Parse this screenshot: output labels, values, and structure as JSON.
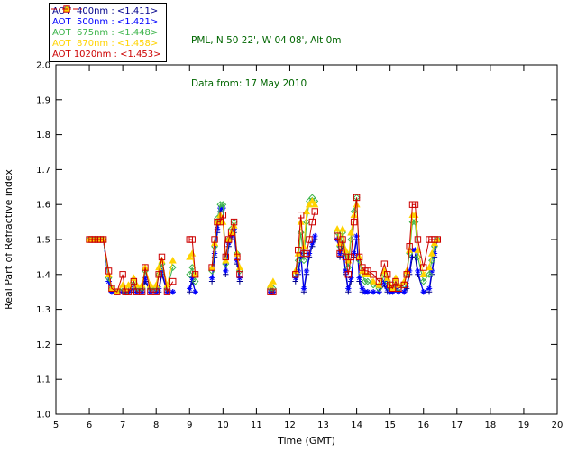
{
  "header": {
    "site_line": "PML, N 50 22', W 04 08', Alt 0m",
    "date_line": "Data from: 17 May 2010",
    "text_color": "#006600"
  },
  "chart_data": {
    "type": "line",
    "title": "",
    "xlabel": "Time (GMT)",
    "ylabel": "Real Part of Refractive index",
    "xlim": [
      5,
      20
    ],
    "ylim": [
      1.0,
      2.0
    ],
    "grid": false,
    "legend_position": "top-left",
    "axis_color": "#000000",
    "gap_threshold": 0.45,
    "xticks": [
      5,
      6,
      7,
      8,
      9,
      10,
      11,
      12,
      13,
      14,
      15,
      16,
      17,
      18,
      19,
      20
    ],
    "xtick_labels": [
      "5",
      "6",
      "7",
      "8",
      "9",
      "10",
      "11",
      "12",
      "13",
      "14",
      "15",
      "16",
      "17",
      "18",
      "19",
      "20"
    ],
    "yticks": [
      1.0,
      1.1,
      1.2,
      1.3,
      1.4,
      1.5,
      1.6,
      1.7,
      1.8,
      1.9,
      2.0
    ],
    "ytick_labels": [
      "1.0",
      "1.1",
      "1.2",
      "1.3",
      "1.4",
      "1.5",
      "1.6",
      "1.7",
      "1.8",
      "1.9",
      "2.0"
    ],
    "x": [
      6.0,
      6.08,
      6.17,
      6.25,
      6.33,
      6.42,
      6.58,
      6.67,
      6.83,
      7.0,
      7.08,
      7.17,
      7.33,
      7.42,
      7.58,
      7.67,
      7.83,
      8.0,
      8.08,
      8.17,
      8.33,
      8.5,
      9.0,
      9.08,
      9.17,
      9.67,
      9.75,
      9.83,
      9.92,
      10.0,
      10.08,
      10.17,
      10.25,
      10.33,
      10.42,
      10.5,
      11.42,
      11.5,
      12.17,
      12.25,
      12.33,
      12.42,
      12.5,
      12.58,
      12.67,
      12.75,
      13.42,
      13.5,
      13.58,
      13.67,
      13.75,
      13.83,
      13.92,
      14.0,
      14.08,
      14.17,
      14.25,
      14.33,
      14.5,
      14.67,
      14.83,
      14.92,
      15.0,
      15.08,
      15.17,
      15.25,
      15.42,
      15.5,
      15.58,
      15.67,
      15.75,
      15.83,
      16.0,
      16.17,
      16.25,
      16.33,
      16.42
    ],
    "series": [
      {
        "id": "aot-400nm",
        "name": "AOT 400nm",
        "legend_label": "AOT  400nm : <1.411>",
        "mean": 1.411,
        "color": "#00008B",
        "marker": "plus",
        "values": [
          1.5,
          1.5,
          1.5,
          1.5,
          1.5,
          1.5,
          1.38,
          1.35,
          1.35,
          1.35,
          1.35,
          1.35,
          1.35,
          1.35,
          1.35,
          1.38,
          1.35,
          1.35,
          1.35,
          1.4,
          1.35,
          1.35,
          1.35,
          1.38,
          1.35,
          1.38,
          1.45,
          1.52,
          1.58,
          1.59,
          1.4,
          1.48,
          1.5,
          1.52,
          1.43,
          1.38,
          1.35,
          1.35,
          1.38,
          1.4,
          1.45,
          1.35,
          1.4,
          1.45,
          1.48,
          1.5,
          1.5,
          1.45,
          1.48,
          1.4,
          1.35,
          1.38,
          1.45,
          1.5,
          1.38,
          1.35,
          1.35,
          1.35,
          1.35,
          1.35,
          1.37,
          1.35,
          1.35,
          1.35,
          1.36,
          1.35,
          1.35,
          1.36,
          1.4,
          1.45,
          1.45,
          1.4,
          1.35,
          1.35,
          1.4,
          1.45,
          1.5
        ]
      },
      {
        "id": "aot-500nm",
        "name": "AOT 500nm",
        "legend_label": "AOT  500nm : <1.421>",
        "mean": 1.421,
        "color": "#0000FF",
        "marker": "asterisk",
        "values": [
          1.5,
          1.5,
          1.5,
          1.5,
          1.5,
          1.5,
          1.38,
          1.35,
          1.35,
          1.35,
          1.35,
          1.35,
          1.36,
          1.35,
          1.35,
          1.39,
          1.35,
          1.35,
          1.36,
          1.41,
          1.35,
          1.35,
          1.36,
          1.39,
          1.35,
          1.39,
          1.46,
          1.53,
          1.59,
          1.59,
          1.41,
          1.49,
          1.51,
          1.53,
          1.44,
          1.39,
          1.35,
          1.35,
          1.39,
          1.41,
          1.46,
          1.36,
          1.41,
          1.46,
          1.49,
          1.51,
          1.5,
          1.46,
          1.49,
          1.41,
          1.36,
          1.39,
          1.46,
          1.51,
          1.39,
          1.36,
          1.35,
          1.35,
          1.35,
          1.35,
          1.38,
          1.36,
          1.35,
          1.35,
          1.36,
          1.35,
          1.35,
          1.37,
          1.41,
          1.47,
          1.47,
          1.41,
          1.35,
          1.36,
          1.41,
          1.46,
          1.5
        ]
      },
      {
        "id": "aot-675nm",
        "name": "AOT 675nm",
        "legend_label": "AOT  675nm : <1.448>",
        "mean": 1.448,
        "color": "#3CB44B",
        "marker": "diamond",
        "values": [
          1.5,
          1.5,
          1.5,
          1.5,
          1.5,
          1.5,
          1.39,
          1.36,
          1.35,
          1.36,
          1.35,
          1.36,
          1.38,
          1.36,
          1.36,
          1.41,
          1.36,
          1.36,
          1.4,
          1.43,
          1.36,
          1.42,
          1.4,
          1.42,
          1.38,
          1.41,
          1.48,
          1.56,
          1.6,
          1.6,
          1.43,
          1.5,
          1.53,
          1.55,
          1.46,
          1.41,
          1.36,
          1.36,
          1.4,
          1.44,
          1.52,
          1.44,
          1.55,
          1.61,
          1.62,
          1.61,
          1.52,
          1.48,
          1.52,
          1.46,
          1.42,
          1.5,
          1.58,
          1.62,
          1.44,
          1.4,
          1.38,
          1.38,
          1.37,
          1.36,
          1.4,
          1.38,
          1.36,
          1.36,
          1.38,
          1.36,
          1.37,
          1.4,
          1.46,
          1.55,
          1.55,
          1.45,
          1.38,
          1.4,
          1.44,
          1.48,
          1.5
        ]
      },
      {
        "id": "aot-870nm",
        "name": "AOT 870nm",
        "legend_label": "AOT  870nm : <1.458>",
        "mean": 1.458,
        "color": "#FFD300",
        "marker": "triangle",
        "values": [
          1.5,
          1.5,
          1.5,
          1.5,
          1.5,
          1.5,
          1.4,
          1.36,
          1.35,
          1.37,
          1.36,
          1.37,
          1.39,
          1.37,
          1.37,
          1.42,
          1.37,
          1.37,
          1.42,
          1.44,
          1.37,
          1.44,
          1.45,
          1.46,
          1.4,
          1.42,
          1.49,
          1.55,
          1.57,
          1.55,
          1.44,
          1.5,
          1.52,
          1.54,
          1.46,
          1.42,
          1.37,
          1.38,
          1.41,
          1.46,
          1.55,
          1.48,
          1.58,
          1.6,
          1.61,
          1.6,
          1.53,
          1.49,
          1.53,
          1.47,
          1.44,
          1.52,
          1.57,
          1.6,
          1.45,
          1.41,
          1.4,
          1.4,
          1.38,
          1.37,
          1.41,
          1.39,
          1.37,
          1.36,
          1.39,
          1.37,
          1.38,
          1.41,
          1.47,
          1.57,
          1.57,
          1.47,
          1.4,
          1.42,
          1.46,
          1.49,
          1.5
        ]
      },
      {
        "id": "aot-1020nm",
        "name": "AOT 1020nm",
        "legend_label": "AOT 1020nm : <1.453>",
        "mean": 1.453,
        "color": "#CC0000",
        "marker": "square",
        "values": [
          1.5,
          1.5,
          1.5,
          1.5,
          1.5,
          1.5,
          1.41,
          1.36,
          1.35,
          1.4,
          1.35,
          1.35,
          1.38,
          1.35,
          1.35,
          1.42,
          1.35,
          1.35,
          1.4,
          1.45,
          1.35,
          1.38,
          1.5,
          1.5,
          1.4,
          1.42,
          1.5,
          1.55,
          1.55,
          1.57,
          1.45,
          1.5,
          1.52,
          1.55,
          1.45,
          1.4,
          1.35,
          1.35,
          1.4,
          1.47,
          1.57,
          1.46,
          1.46,
          1.5,
          1.55,
          1.58,
          1.51,
          1.46,
          1.5,
          1.45,
          1.4,
          1.45,
          1.55,
          1.62,
          1.45,
          1.42,
          1.41,
          1.41,
          1.4,
          1.38,
          1.43,
          1.4,
          1.37,
          1.36,
          1.38,
          1.36,
          1.37,
          1.4,
          1.48,
          1.6,
          1.6,
          1.5,
          1.42,
          1.5,
          1.5,
          1.5,
          1.5
        ]
      }
    ]
  }
}
